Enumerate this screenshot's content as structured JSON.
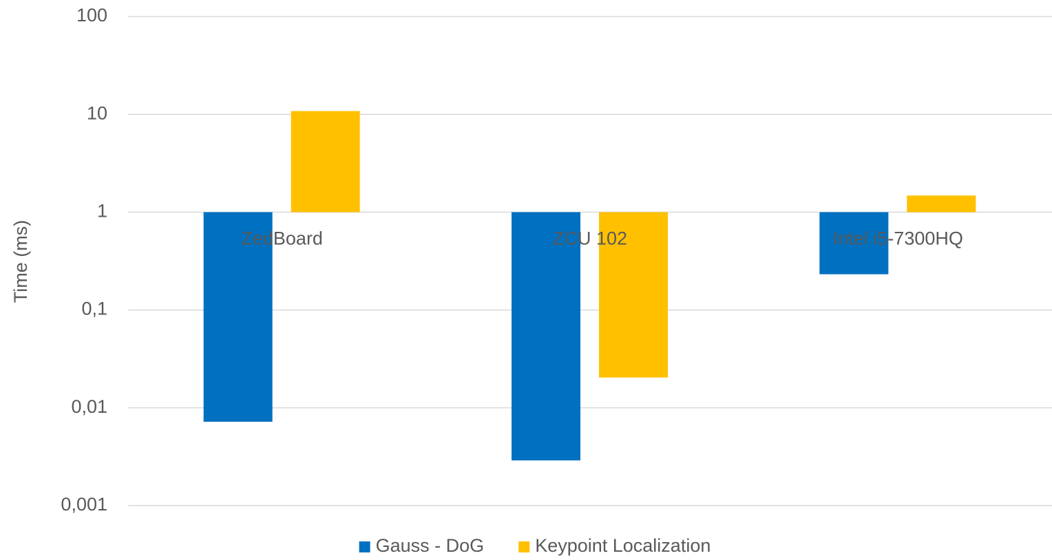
{
  "chart_data": {
    "type": "bar",
    "y_label": "Time (ms)",
    "categories": [
      "ZedBoard",
      "ZCU 102",
      "Intel i5-7300HQ"
    ],
    "series": [
      {
        "name": "Gauss - DoG",
        "color": "#0070c0",
        "values": [
          0.0072,
          0.0029,
          0.232
        ]
      },
      {
        "name": "Keypoint Localization",
        "color": "#ffc000",
        "values": [
          10.8,
          0.0204,
          1.48
        ]
      }
    ],
    "log_scale": true,
    "ylim": [
      0.001,
      100
    ],
    "yticks": [
      {
        "value": 0.001,
        "label": "0,001"
      },
      {
        "value": 0.01,
        "label": "0,01"
      },
      {
        "value": 0.1,
        "label": "0,1"
      },
      1,
      10,
      100
    ],
    "grid": true,
    "legend": "bottom"
  }
}
